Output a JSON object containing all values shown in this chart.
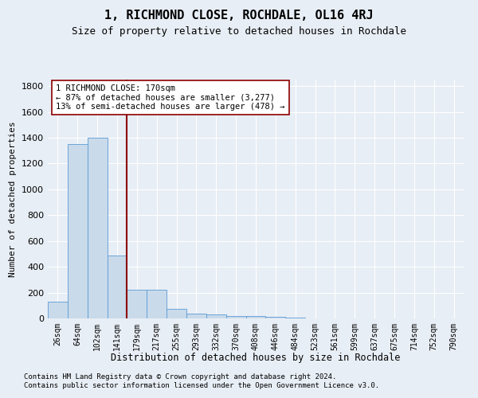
{
  "title": "1, RICHMOND CLOSE, ROCHDALE, OL16 4RJ",
  "subtitle": "Size of property relative to detached houses in Rochdale",
  "xlabel": "Distribution of detached houses by size in Rochdale",
  "ylabel": "Number of detached properties",
  "bar_labels": [
    "26sqm",
    "64sqm",
    "102sqm",
    "141sqm",
    "179sqm",
    "217sqm",
    "255sqm",
    "293sqm",
    "332sqm",
    "370sqm",
    "408sqm",
    "446sqm",
    "484sqm",
    "523sqm",
    "561sqm",
    "599sqm",
    "637sqm",
    "675sqm",
    "714sqm",
    "752sqm",
    "790sqm"
  ],
  "bar_values": [
    130,
    1350,
    1400,
    490,
    225,
    225,
    75,
    40,
    30,
    20,
    20,
    15,
    5,
    0,
    0,
    0,
    0,
    0,
    0,
    0,
    0
  ],
  "bar_color": "#c9daea",
  "bar_edge_color": "#5b9bd5",
  "vline_color": "#8b0000",
  "annotation_line1": "1 RICHMOND CLOSE: 170sqm",
  "annotation_line2": "← 87% of detached houses are smaller (3,277)",
  "annotation_line3": "13% of semi-detached houses are larger (478) →",
  "annotation_box_color": "white",
  "annotation_box_edge": "#8b0000",
  "ylim": [
    0,
    1850
  ],
  "yticks": [
    0,
    200,
    400,
    600,
    800,
    1000,
    1200,
    1400,
    1600,
    1800
  ],
  "footnote1": "Contains HM Land Registry data © Crown copyright and database right 2024.",
  "footnote2": "Contains public sector information licensed under the Open Government Licence v3.0.",
  "background_color": "#e8eef5",
  "plot_bg_color": "#e8eef5",
  "grid_color": "#ffffff"
}
